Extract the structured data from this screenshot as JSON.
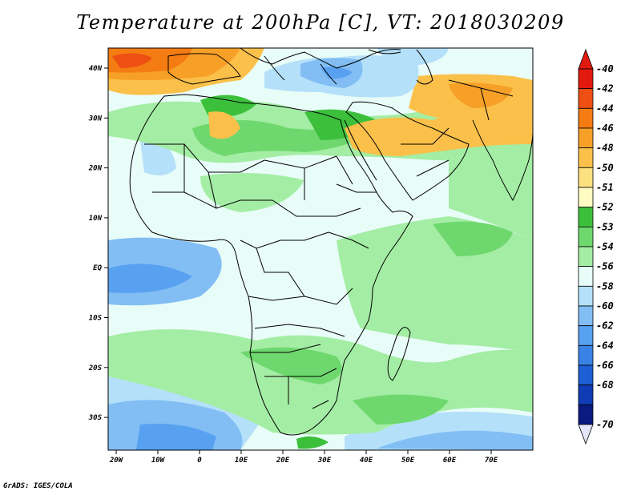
{
  "title": "Temperature at 200hPa [C], VT: 2018030209",
  "footer": "GrADS: IGES/COLA",
  "map": {
    "lat_labels": [
      "40N",
      "30N",
      "20N",
      "10N",
      "EQ",
      "10S",
      "20S",
      "30S"
    ],
    "lon_labels": [
      "20W",
      "10W",
      "0",
      "10E",
      "20E",
      "30E",
      "40E",
      "50E",
      "60E",
      "70E"
    ]
  },
  "colorbar": {
    "labels": [
      "-40",
      "-42",
      "-44",
      "-46",
      "-48",
      "-50",
      "-51",
      "-52",
      "-53",
      "-54",
      "-56",
      "-58",
      "-60",
      "-62",
      "-64",
      "-66",
      "-68",
      "-70"
    ],
    "colors": [
      "#e2190f",
      "#ee4f12",
      "#f47c12",
      "#f7a028",
      "#fac04a",
      "#fde180",
      "#fefcc2",
      "#3cc03c",
      "#6ed86e",
      "#a4eda4",
      "#e8fcf8",
      "#b4e0fa",
      "#82bef4",
      "#58a0f0",
      "#3a82e6",
      "#1e5fd4",
      "#0f3bb4",
      "#0a1a80"
    ],
    "top_arrow_color": "#e2190f",
    "bottom_arrow_color": "#e6e6fa"
  }
}
